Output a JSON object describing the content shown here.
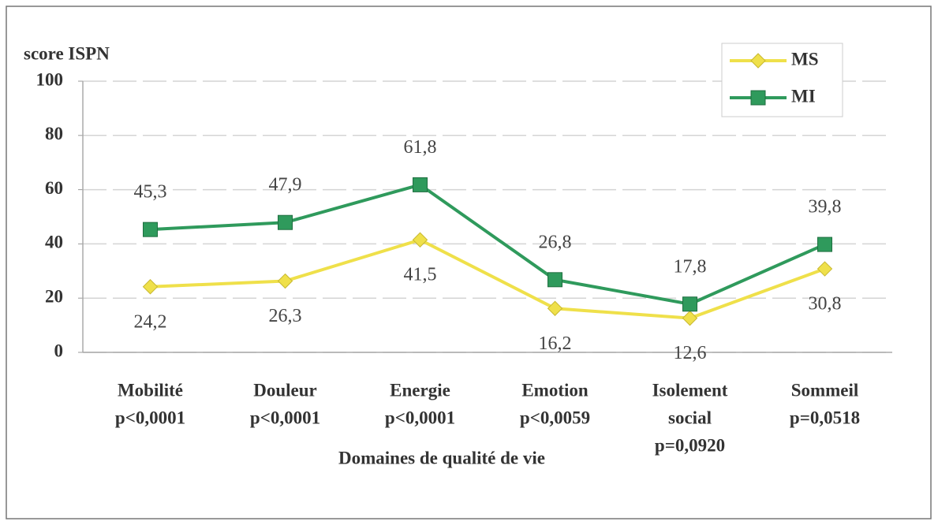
{
  "chart_data": {
    "type": "line",
    "ylabel": "score ISPN",
    "xlabel": "Domaines de qualité de vie",
    "categories": [
      [
        "Mobilité",
        "p<0,0001"
      ],
      [
        "Douleur",
        "p<0,0001"
      ],
      [
        "Energie",
        "p<0,0001"
      ],
      [
        "Emotion",
        "p<0,0059"
      ],
      [
        "Isolement",
        "social",
        "p=0,0920"
      ],
      [
        "Sommeil",
        "p=0,0518"
      ]
    ],
    "series": [
      {
        "name": "MS",
        "color": "#efe04a",
        "marker": "diamond",
        "values": [
          24.2,
          26.3,
          41.5,
          16.2,
          12.6,
          30.8
        ],
        "value_labels": [
          "24,2",
          "26,3",
          "41,5",
          "16,2",
          "12,6",
          "30,8"
        ]
      },
      {
        "name": "MI",
        "color": "#2f9a5c",
        "marker": "square",
        "values": [
          45.3,
          47.9,
          61.8,
          26.8,
          17.8,
          39.8
        ],
        "value_labels": [
          "45,3",
          "47,9",
          "61,8",
          "26,8",
          "17,8",
          "39,8"
        ]
      }
    ],
    "ylim": [
      0,
      100
    ],
    "yticks": [
      0,
      20,
      40,
      60,
      80,
      100
    ],
    "grid": true,
    "legend": "top-right"
  }
}
